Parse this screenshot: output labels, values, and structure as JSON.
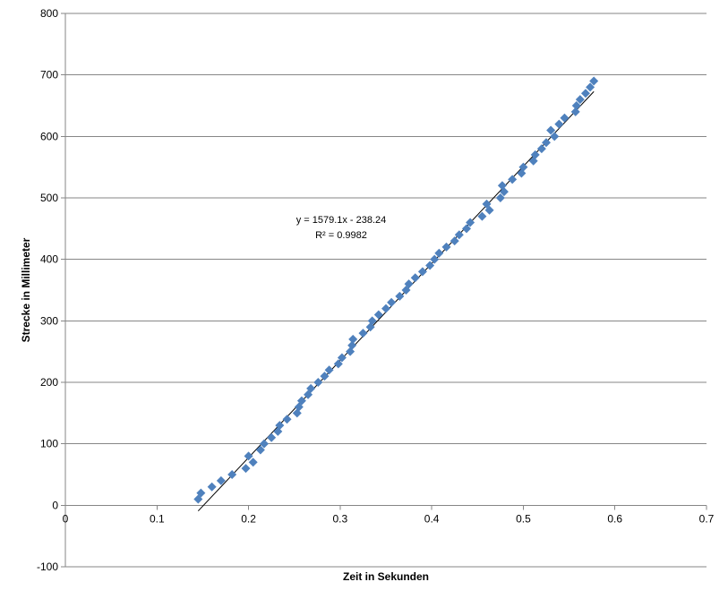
{
  "chart_data": {
    "type": "scatter",
    "xlabel": "Zeit in Sekunden",
    "ylabel": "Strecke in Millimeter",
    "xlim": [
      0,
      0.7
    ],
    "ylim": [
      -100,
      800
    ],
    "x_ticks": [
      0,
      0.1,
      0.2,
      0.3,
      0.4,
      0.5,
      0.6,
      0.7
    ],
    "y_ticks": [
      -100,
      0,
      100,
      200,
      300,
      400,
      500,
      600,
      700,
      800
    ],
    "x_tick_labels": [
      "0",
      "0.1",
      "0.2",
      "0.3",
      "0.4",
      "0.5",
      "0.6",
      "0.7"
    ],
    "y_tick_labels": [
      "-100",
      "0",
      "100",
      "200",
      "300",
      "400",
      "500",
      "600",
      "700",
      "800"
    ],
    "grid": "horizontal",
    "legend": "none",
    "colors": {
      "marker": "#4f81bd",
      "trendline": "#000000",
      "grid": "#868686"
    },
    "series": [
      {
        "marker": "diamond",
        "points": [
          [
            0.145,
            10
          ],
          [
            0.148,
            20
          ],
          [
            0.16,
            30
          ],
          [
            0.17,
            40
          ],
          [
            0.182,
            50
          ],
          [
            0.197,
            60
          ],
          [
            0.2,
            80
          ],
          [
            0.205,
            70
          ],
          [
            0.213,
            90
          ],
          [
            0.217,
            100
          ],
          [
            0.225,
            110
          ],
          [
            0.232,
            120
          ],
          [
            0.234,
            130
          ],
          [
            0.242,
            140
          ],
          [
            0.253,
            150
          ],
          [
            0.255,
            160
          ],
          [
            0.258,
            170
          ],
          [
            0.265,
            180
          ],
          [
            0.268,
            190
          ],
          [
            0.276,
            200
          ],
          [
            0.283,
            210
          ],
          [
            0.288,
            220
          ],
          [
            0.298,
            230
          ],
          [
            0.302,
            240
          ],
          [
            0.311,
            250
          ],
          [
            0.313,
            260
          ],
          [
            0.314,
            270
          ],
          [
            0.325,
            280
          ],
          [
            0.333,
            290
          ],
          [
            0.335,
            300
          ],
          [
            0.342,
            310
          ],
          [
            0.35,
            320
          ],
          [
            0.356,
            330
          ],
          [
            0.365,
            340
          ],
          [
            0.372,
            350
          ],
          [
            0.375,
            360
          ],
          [
            0.382,
            370
          ],
          [
            0.39,
            380
          ],
          [
            0.398,
            390
          ],
          [
            0.403,
            400
          ],
          [
            0.408,
            410
          ],
          [
            0.416,
            420
          ],
          [
            0.425,
            430
          ],
          [
            0.43,
            440
          ],
          [
            0.438,
            450
          ],
          [
            0.442,
            460
          ],
          [
            0.455,
            470
          ],
          [
            0.46,
            490
          ],
          [
            0.463,
            480
          ],
          [
            0.475,
            500
          ],
          [
            0.477,
            520
          ],
          [
            0.479,
            510
          ],
          [
            0.488,
            530
          ],
          [
            0.498,
            540
          ],
          [
            0.5,
            550
          ],
          [
            0.511,
            560
          ],
          [
            0.513,
            570
          ],
          [
            0.52,
            580
          ],
          [
            0.525,
            590
          ],
          [
            0.53,
            610
          ],
          [
            0.534,
            600
          ],
          [
            0.539,
            620
          ],
          [
            0.545,
            630
          ],
          [
            0.557,
            640
          ],
          [
            0.558,
            650
          ],
          [
            0.562,
            660
          ],
          [
            0.568,
            670
          ],
          [
            0.573,
            680
          ],
          [
            0.577,
            690
          ]
        ]
      }
    ],
    "trendline": {
      "type": "linear",
      "slope": 1579.1,
      "intercept": -238.24,
      "x_range": [
        0.145,
        0.577
      ],
      "equation": "y = 1579.1x - 238.24",
      "r_squared": "R² = 0.9982"
    }
  }
}
